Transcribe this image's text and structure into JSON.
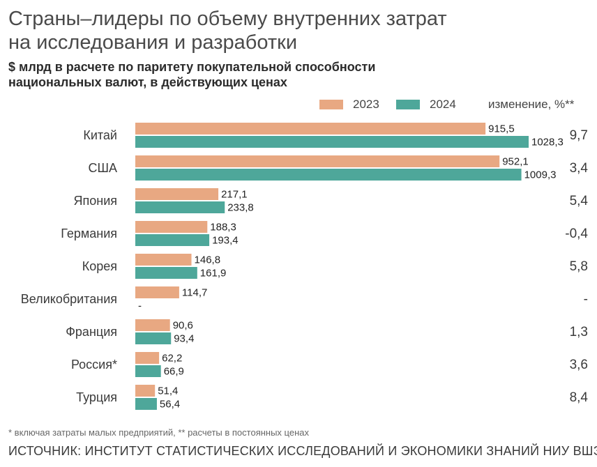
{
  "title_line1": "Страны–лидеры по объему внутренних затрат",
  "title_line2": "на исследования и разработки",
  "subtitle_line1": "$ млрд в расчете по паритету покупательной способности",
  "subtitle_line2": "национальных валют, в действующих ценах",
  "change_header": "изменение, %**",
  "footnote": "* включая затраты малых предприятий, ** расчеты в постоянных ценах",
  "source": "ИСТОЧНИК: ИНСТИТУТ СТАТИСТИЧЕСКИХ ИССЛЕДОВАНИЙ И ЭКОНОМИКИ ЗНАНИЙ НИУ ВШЭ",
  "colors": {
    "2023": "#e8a882",
    "2024": "#4ea79a",
    "text": "#3a3a3a"
  },
  "chart_data": {
    "type": "bar",
    "orientation": "horizontal",
    "categories": [
      "Китай",
      "США",
      "Япония",
      "Германия",
      "Корея",
      "Великобритания",
      "Франция",
      "Россия*",
      "Турция"
    ],
    "series": [
      {
        "name": "2023",
        "values": [
          915.5,
          952.1,
          217.1,
          188.3,
          146.8,
          114.7,
          90.6,
          62.2,
          51.4
        ],
        "labels": [
          "915,5",
          "952,1",
          "217,1",
          "188,3",
          "146,8",
          "114,7",
          "90,6",
          "62,2",
          "51,4"
        ]
      },
      {
        "name": "2024",
        "values": [
          1028.3,
          1009.3,
          233.8,
          193.4,
          161.9,
          null,
          93.4,
          66.9,
          56.4
        ],
        "labels": [
          "1028,3",
          "1009,3",
          "233,8",
          "193,4",
          "161,9",
          "-",
          "93,4",
          "66,9",
          "56,4"
        ]
      }
    ],
    "change_percent": [
      "9,7",
      "3,4",
      "5,4",
      "-0,4",
      "5,8",
      "-",
      "1,3",
      "3,6",
      "8,4"
    ],
    "xlim": [
      0,
      1028.3
    ],
    "legend_position": "top"
  }
}
